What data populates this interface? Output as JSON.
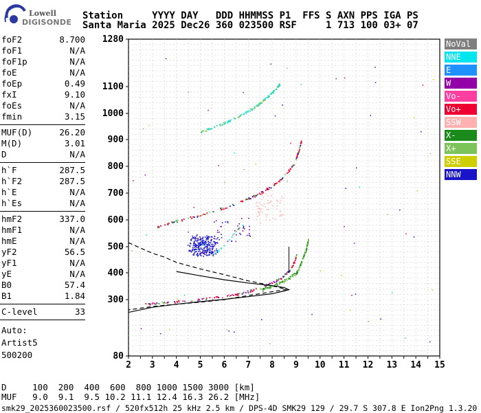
{
  "logo": {
    "top": "Lowell",
    "bottom": "DIGISONDE"
  },
  "header": {
    "line1": "Station     YYYY DAY   DDD HHMMSS P1  FFS S AXN PPS IGA PS",
    "line2": "Santa Maria 2025 Dec26 360 023500 RSF     1 713 100 03+ 07"
  },
  "params": {
    "group1": [
      {
        "label": "foF2",
        "value": "8.700"
      },
      {
        "label": "foF1",
        "value": "N/A"
      },
      {
        "label": "foF1p",
        "value": "N/A"
      },
      {
        "label": "foE",
        "value": "N/A"
      },
      {
        "label": "foEp",
        "value": "0.49"
      },
      {
        "label": "fxI",
        "value": "9.10"
      },
      {
        "label": "foEs",
        "value": "N/A"
      },
      {
        "label": "fmin",
        "value": "3.15"
      }
    ],
    "group2": [
      {
        "label": "MUF(D)",
        "value": "26.20"
      },
      {
        "label": "M(D)",
        "value": "3.01"
      },
      {
        "label": "D",
        "value": "N/A"
      }
    ],
    "group3": [
      {
        "label": "h`F",
        "value": "287.5"
      },
      {
        "label": "h`F2",
        "value": "287.5"
      },
      {
        "label": "h`E",
        "value": "N/A"
      },
      {
        "label": "h`Es",
        "value": "N/A"
      }
    ],
    "group4": [
      {
        "label": "hmF2",
        "value": "337.0"
      },
      {
        "label": "hmF1",
        "value": "N/A"
      },
      {
        "label": "hmE",
        "value": "N/A"
      },
      {
        "label": "yF2",
        "value": "56.5"
      },
      {
        "label": "yF1",
        "value": "N/A"
      },
      {
        "label": "yE",
        "value": "N/A"
      },
      {
        "label": "B0",
        "value": "57.4"
      },
      {
        "label": "B1",
        "value": "1.84"
      }
    ],
    "clevel": {
      "label": "C-level",
      "value": "33"
    },
    "auto": [
      "Auto:",
      "Artist5",
      "500200"
    ]
  },
  "legend": [
    {
      "label": "NoVal",
      "bg": "#7f7f7f",
      "fg": "#ffffff"
    },
    {
      "label": "NNE",
      "bg": "#00e5ee",
      "fg": "#ffffff"
    },
    {
      "label": "E",
      "bg": "#1e90ff",
      "fg": "#ffffff"
    },
    {
      "label": "W",
      "bg": "#9400a8",
      "fg": "#ffffff"
    },
    {
      "label": "Vo-",
      "bg": "#ff3fa0",
      "fg": "#ffffff"
    },
    {
      "label": "Vo+",
      "bg": "#ee0030",
      "fg": "#ffffff"
    },
    {
      "label": "SSW",
      "bg": "#ffb0b0",
      "fg": "#ffffff"
    },
    {
      "label": "X-",
      "bg": "#1a8a1a",
      "fg": "#ffffff"
    },
    {
      "label": "X+",
      "bg": "#7cc45a",
      "fg": "#ffffff"
    },
    {
      "label": "SSE",
      "bg": "#cfcf00",
      "fg": "#ffffff"
    },
    {
      "label": "NNW",
      "bg": "#1a14c8",
      "fg": "#ffffff"
    }
  ],
  "bottom": {
    "d_row": "D     100  200  400  600  800 1000 1500 3000 [km]",
    "muf_row": "MUF   9.0  9.1  9.5 10.2 11.1 12.4 16.3 26.2 [MHz]",
    "footer": "smk29_2025360023500.rsf / 520fx512h 25 kHz 2.5 km / DPS-4D SMK29 129 / 29.7 S 307.8 E Ion2Png 1.3.20"
  },
  "chart_data": {
    "type": "scatter",
    "xlabel": "",
    "ylabel": "",
    "xlim": [
      2,
      15
    ],
    "ylim": [
      80,
      1280
    ],
    "x_ticks": [
      2,
      3,
      4,
      5,
      6,
      7,
      8,
      9,
      10,
      11,
      12,
      13,
      14,
      15
    ],
    "y_ticks": [
      80,
      300,
      400,
      500,
      600,
      700,
      800,
      900,
      1000,
      1100,
      1280
    ],
    "grid": "dashed",
    "traces": [
      {
        "name": "F2 virtual height (o-trace)",
        "color": "#ee0030",
        "points": [
          [
            2.7,
            283
          ],
          [
            3.2,
            288
          ],
          [
            4,
            294
          ],
          [
            5,
            302
          ],
          [
            6,
            313
          ],
          [
            6.5,
            321
          ],
          [
            7,
            332
          ],
          [
            7.5,
            346
          ],
          [
            8,
            364
          ],
          [
            8.4,
            385
          ],
          [
            8.7,
            410
          ],
          [
            8.9,
            440
          ],
          [
            9.0,
            470
          ]
        ]
      },
      {
        "name": "F2 virtual height (x-trace)",
        "color": "#7cc45a",
        "points": [
          [
            7.5,
            336
          ],
          [
            8,
            352
          ],
          [
            8.5,
            372
          ],
          [
            9,
            400
          ],
          [
            9.2,
            440
          ],
          [
            9.4,
            490
          ],
          [
            9.5,
            530
          ]
        ]
      },
      {
        "name": "second hop",
        "color": "#ee0030",
        "points": [
          [
            3.2,
            577
          ],
          [
            4,
            597
          ],
          [
            5,
            620
          ],
          [
            6,
            647
          ],
          [
            7,
            680
          ],
          [
            7.5,
            702
          ],
          [
            8,
            728
          ],
          [
            8.5,
            765
          ],
          [
            8.9,
            810
          ],
          [
            9.1,
            860
          ],
          [
            9.2,
            895
          ]
        ]
      },
      {
        "name": "third hop",
        "color": "#00e5ee",
        "points": [
          [
            5,
            930
          ],
          [
            6,
            965
          ],
          [
            7,
            1010
          ],
          [
            7.5,
            1040
          ],
          [
            8,
            1080
          ],
          [
            8.3,
            1110
          ]
        ]
      },
      {
        "name": "spread echoes",
        "color": "#1a14c8",
        "points": [
          [
            4.6,
            480
          ],
          [
            5,
            500
          ],
          [
            5.2,
            520
          ],
          [
            5.5,
            470
          ],
          [
            5.8,
            490
          ],
          [
            6.2,
            530
          ],
          [
            6.5,
            560
          ],
          [
            6.8,
            590
          ]
        ]
      }
    ],
    "profile_solid": [
      [
        2,
        250
      ],
      [
        3,
        270
      ],
      [
        4,
        282
      ],
      [
        5,
        292
      ],
      [
        6,
        301
      ],
      [
        7,
        311
      ],
      [
        8,
        322
      ],
      [
        8.5,
        332
      ],
      [
        8.7,
        337
      ],
      [
        8.5,
        345
      ],
      [
        8,
        352
      ],
      [
        7,
        362
      ],
      [
        6,
        374
      ],
      [
        5,
        389
      ],
      [
        4,
        405
      ]
    ],
    "profile_dashed": [
      [
        2,
        515
      ],
      [
        2.5,
        495
      ],
      [
        3,
        475
      ],
      [
        3.5,
        460
      ],
      [
        4,
        440
      ],
      [
        5,
        415
      ],
      [
        6,
        393
      ],
      [
        7,
        370
      ],
      [
        8,
        352
      ],
      [
        8.6,
        338
      ],
      [
        7,
        315
      ],
      [
        6,
        300
      ],
      [
        5,
        290
      ],
      [
        4,
        282
      ],
      [
        3,
        273
      ],
      [
        2,
        260
      ]
    ]
  }
}
